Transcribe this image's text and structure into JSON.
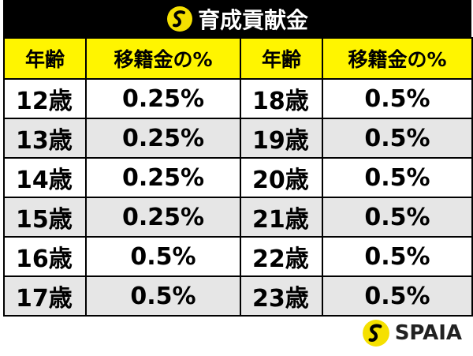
{
  "header": {
    "title": "育成貢献金"
  },
  "table": {
    "columns": [
      "年齢",
      "移籍金の%",
      "年齢",
      "移籍金の%"
    ],
    "rows": [
      [
        "12歳",
        "0.25%",
        "18歳",
        "0.5%"
      ],
      [
        "13歳",
        "0.25%",
        "19歳",
        "0.5%"
      ],
      [
        "14歳",
        "0.25%",
        "20歳",
        "0.5%"
      ],
      [
        "15歳",
        "0.25%",
        "21歳",
        "0.5%"
      ],
      [
        "16歳",
        "0.5%",
        "22歳",
        "0.5%"
      ],
      [
        "17歳",
        "0.5%",
        "23歳",
        "0.5%"
      ]
    ]
  },
  "footer": {
    "brand": "SPAIA"
  }
}
